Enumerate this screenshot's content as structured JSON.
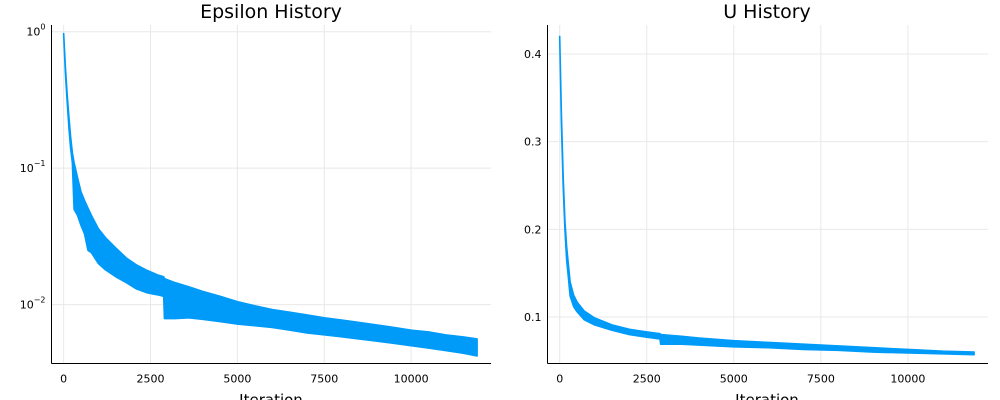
{
  "chart_data": [
    {
      "type": "line",
      "title": "Epsilon History",
      "xlabel": "Iteration",
      "ylabel": "",
      "yscale": "log",
      "xlim": [
        -350,
        12300
      ],
      "ylim": [
        0.0037,
        1.12
      ],
      "grid": true,
      "legend": "none",
      "x_ticks": [
        {
          "value": 0,
          "label": "0"
        },
        {
          "value": 2500,
          "label": "2500"
        },
        {
          "value": 5000,
          "label": "5000"
        },
        {
          "value": 7500,
          "label": "7500"
        },
        {
          "value": 10000,
          "label": "10000"
        }
      ],
      "y_ticks": [
        {
          "value": 0.01,
          "base": "10",
          "exp": "−2"
        },
        {
          "value": 0.1,
          "base": "10",
          "exp": "−1"
        },
        {
          "value": 1,
          "base": "10",
          "exp": "0"
        }
      ],
      "series": [
        {
          "color": "#009af9",
          "x": [
            0,
            50,
            100,
            150,
            200,
            250,
            300,
            400,
            500,
            600,
            700,
            800,
            1000,
            1200,
            1500,
            1800,
            2100,
            2400,
            2700,
            2880,
            2900,
            3200,
            3600,
            4000,
            4500,
            5000,
            5500,
            6000,
            6500,
            7000,
            7500,
            8000,
            8500,
            9000,
            9500,
            10000,
            10500,
            11000,
            11500,
            11900
          ],
          "upper": [
            0.97,
            0.55,
            0.35,
            0.24,
            0.17,
            0.13,
            0.11,
            0.085,
            0.067,
            0.058,
            0.051,
            0.045,
            0.036,
            0.031,
            0.026,
            0.022,
            0.0195,
            0.0178,
            0.0165,
            0.016,
            0.0155,
            0.0145,
            0.0135,
            0.0125,
            0.0115,
            0.0105,
            0.0098,
            0.0092,
            0.0088,
            0.0084,
            0.008,
            0.0077,
            0.0074,
            0.0071,
            0.0068,
            0.0065,
            0.0063,
            0.006,
            0.0058,
            0.0056
          ],
          "lower": [
            0.95,
            0.5,
            0.31,
            0.2,
            0.14,
            0.11,
            0.05,
            0.045,
            0.038,
            0.033,
            0.025,
            0.024,
            0.02,
            0.018,
            0.016,
            0.0145,
            0.013,
            0.0122,
            0.0118,
            0.0115,
            0.0079,
            0.0079,
            0.008,
            0.0078,
            0.0075,
            0.0072,
            0.007,
            0.0068,
            0.0065,
            0.0062,
            0.006,
            0.0058,
            0.0056,
            0.0054,
            0.0052,
            0.005,
            0.0048,
            0.0046,
            0.0044,
            0.0042
          ]
        }
      ]
    },
    {
      "type": "line",
      "title": "U History",
      "xlabel": "Iteration",
      "ylabel": "",
      "yscale": "linear",
      "xlim": [
        -350,
        12300
      ],
      "ylim": [
        0.047,
        0.433
      ],
      "grid": true,
      "legend": "none",
      "x_ticks": [
        {
          "value": 0,
          "label": "0"
        },
        {
          "value": 2500,
          "label": "2500"
        },
        {
          "value": 5000,
          "label": "5000"
        },
        {
          "value": 7500,
          "label": "7500"
        },
        {
          "value": 10000,
          "label": "10000"
        }
      ],
      "y_ticks": [
        {
          "value": 0.1,
          "label": "0.1"
        },
        {
          "value": 0.2,
          "label": "0.2"
        },
        {
          "value": 0.3,
          "label": "0.3"
        },
        {
          "value": 0.4,
          "label": "0.4"
        }
      ],
      "series": [
        {
          "color": "#009af9",
          "x": [
            0,
            50,
            100,
            150,
            200,
            250,
            300,
            400,
            500,
            700,
            1000,
            1500,
            2000,
            2500,
            2880,
            2900,
            3500,
            4000,
            5000,
            6000,
            7000,
            8000,
            9000,
            10000,
            11000,
            11900
          ],
          "upper": [
            0.42,
            0.33,
            0.26,
            0.21,
            0.18,
            0.16,
            0.14,
            0.125,
            0.117,
            0.107,
            0.099,
            0.091,
            0.086,
            0.083,
            0.081,
            0.08,
            0.078,
            0.076,
            0.073,
            0.071,
            0.069,
            0.067,
            0.065,
            0.063,
            0.061,
            0.06
          ],
          "lower": [
            0.42,
            0.32,
            0.25,
            0.2,
            0.165,
            0.145,
            0.124,
            0.112,
            0.106,
            0.097,
            0.091,
            0.085,
            0.08,
            0.077,
            0.075,
            0.069,
            0.069,
            0.068,
            0.066,
            0.065,
            0.063,
            0.062,
            0.06,
            0.059,
            0.058,
            0.057
          ]
        }
      ]
    }
  ]
}
